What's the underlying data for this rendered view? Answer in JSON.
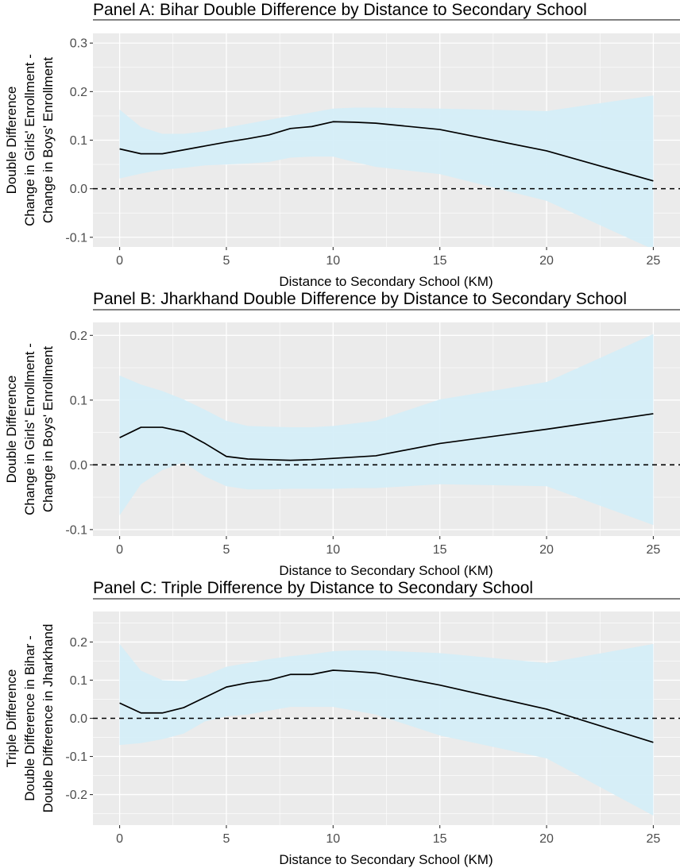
{
  "chart_data": [
    {
      "type": "line",
      "title": "Panel A: Bihar Double Difference by Distance to Secondary School",
      "xlabel": "Distance to Secondary School (KM)",
      "ylabel_lines": [
        "Double Difference",
        "Change in Girls' Enrollment -",
        "Change in Boys' Enrollment"
      ],
      "xlim": [
        -1.25,
        26.25
      ],
      "ylim": [
        -0.12,
        0.32
      ],
      "x_ticks": [
        0,
        5,
        10,
        15,
        20,
        25
      ],
      "y_ticks": [
        -0.1,
        0.0,
        0.1,
        0.2,
        0.3
      ],
      "y_tick_labels": [
        "-0.1",
        "0.0",
        "0.1",
        "0.2",
        "0.3"
      ],
      "reference_line_y": 0,
      "grid": true,
      "series": [
        {
          "x": [
            0,
            1,
            2,
            3,
            4,
            5,
            6,
            7,
            8,
            9,
            10,
            11,
            12,
            15,
            20,
            25
          ],
          "y": [
            0.082,
            0.072,
            0.072,
            0.08,
            0.088,
            0.096,
            0.103,
            0.111,
            0.124,
            0.128,
            0.138,
            0.137,
            0.135,
            0.122,
            0.078,
            0.016
          ],
          "lower": [
            0.021,
            0.031,
            0.039,
            0.043,
            0.048,
            0.05,
            0.052,
            0.055,
            0.064,
            0.066,
            0.066,
            0.055,
            0.045,
            0.03,
            -0.025,
            -0.125
          ],
          "upper": [
            0.163,
            0.127,
            0.113,
            0.113,
            0.118,
            0.126,
            0.134,
            0.142,
            0.15,
            0.157,
            0.165,
            0.167,
            0.167,
            0.165,
            0.16,
            0.192
          ]
        }
      ]
    },
    {
      "type": "line",
      "title": "Panel B: Jharkhand Double Difference by Distance to Secondary School",
      "xlabel": "Distance to Secondary School (KM)",
      "ylabel_lines": [
        "Double Difference",
        "Change in Girls' Enrollment -",
        "Change in Boys' Enrollment"
      ],
      "xlim": [
        -1.25,
        26.25
      ],
      "ylim": [
        -0.11,
        0.22
      ],
      "x_ticks": [
        0,
        5,
        10,
        15,
        20,
        25
      ],
      "y_ticks": [
        -0.1,
        0.0,
        0.1,
        0.2
      ],
      "y_tick_labels": [
        "-0.1",
        "0.0",
        "0.1",
        "0.2"
      ],
      "reference_line_y": 0,
      "grid": true,
      "series": [
        {
          "x": [
            0,
            1,
            2,
            3,
            4,
            5,
            6,
            7,
            8,
            9,
            10,
            11,
            12,
            15,
            20,
            25
          ],
          "y": [
            0.042,
            0.058,
            0.058,
            0.051,
            0.033,
            0.013,
            0.009,
            0.008,
            0.007,
            0.008,
            0.01,
            0.012,
            0.014,
            0.033,
            0.055,
            0.079
          ],
          "lower": [
            -0.078,
            -0.03,
            -0.008,
            0.004,
            -0.018,
            -0.033,
            -0.038,
            -0.038,
            -0.037,
            -0.037,
            -0.037,
            -0.036,
            -0.036,
            -0.03,
            -0.033,
            -0.093
          ],
          "upper": [
            0.138,
            0.124,
            0.114,
            0.101,
            0.085,
            0.068,
            0.06,
            0.059,
            0.058,
            0.058,
            0.06,
            0.064,
            0.068,
            0.101,
            0.128,
            0.202
          ]
        }
      ]
    },
    {
      "type": "line",
      "title": "Panel C: Triple Difference by Distance to Secondary School",
      "xlabel": "Distance to Secondary School (KM)",
      "ylabel_lines": [
        "Triple Difference",
        "Double Difference in Bihar -",
        "Double Difference in Jharkhand"
      ],
      "xlim": [
        -1.25,
        26.25
      ],
      "ylim": [
        -0.28,
        0.28
      ],
      "x_ticks": [
        0,
        5,
        10,
        15,
        20,
        25
      ],
      "y_ticks": [
        -0.2,
        -0.1,
        0.0,
        0.1,
        0.2
      ],
      "y_tick_labels": [
        "-0.2",
        "-0.1",
        "0.0",
        "0.1",
        "0.2"
      ],
      "reference_line_y": 0,
      "grid": true,
      "series": [
        {
          "x": [
            0,
            1,
            2,
            3,
            4,
            5,
            6,
            7,
            8,
            9,
            10,
            11,
            12,
            15,
            20,
            25
          ],
          "y": [
            0.04,
            0.014,
            0.014,
            0.028,
            0.055,
            0.082,
            0.093,
            0.1,
            0.115,
            0.115,
            0.126,
            0.123,
            0.119,
            0.087,
            0.024,
            -0.063
          ],
          "lower": [
            -0.07,
            -0.065,
            -0.055,
            -0.04,
            -0.008,
            0.005,
            0.01,
            0.02,
            0.03,
            0.03,
            0.03,
            0.02,
            0.01,
            -0.045,
            -0.105,
            -0.255
          ],
          "upper": [
            0.195,
            0.125,
            0.1,
            0.097,
            0.112,
            0.135,
            0.145,
            0.155,
            0.163,
            0.168,
            0.176,
            0.178,
            0.178,
            0.171,
            0.145,
            0.195
          ]
        }
      ]
    }
  ],
  "colors": {
    "panel_background": "#EBEBEB",
    "grid_line": "#FFFFFF",
    "ribbon": "#D4EEF7",
    "line": "#000000",
    "tick_text": "#4D4D4D"
  }
}
